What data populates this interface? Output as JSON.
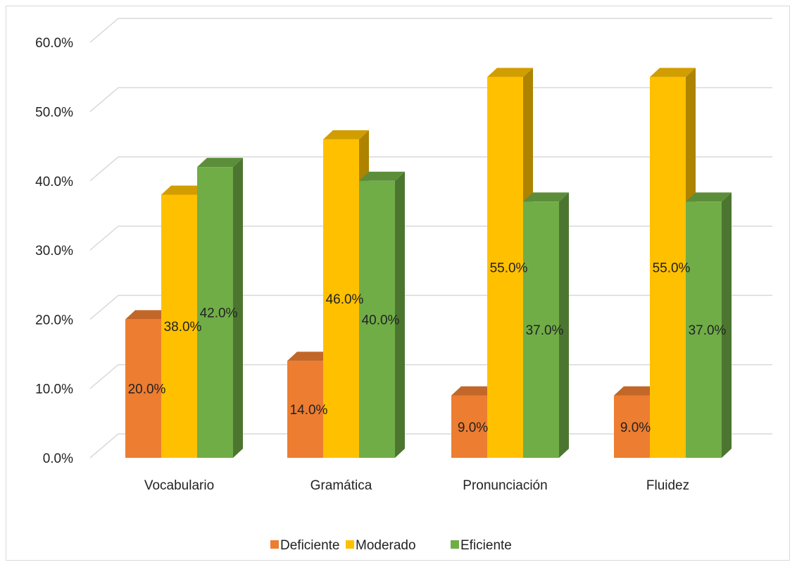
{
  "chart_data": {
    "type": "bar",
    "subtype": "3d-clustered-column",
    "categories": [
      "Vocabulario",
      "Gramática",
      "Pronunciación",
      "Fluidez"
    ],
    "series": [
      {
        "name": "Deficiente",
        "values": [
          20.0,
          14.0,
          9.0,
          9.0
        ],
        "color": "#ED7D31"
      },
      {
        "name": "Moderado",
        "values": [
          38.0,
          46.0,
          55.0,
          55.0
        ],
        "color": "#FFC000"
      },
      {
        "name": "Eficiente",
        "values": [
          42.0,
          40.0,
          37.0,
          37.0
        ],
        "color": "#70AD47"
      }
    ],
    "data_labels": [
      [
        "20.0%",
        "38.0%",
        "42.0%"
      ],
      [
        "14.0%",
        "46.0%",
        "40.0%"
      ],
      [
        "9.0%",
        "55.0%",
        "37.0%"
      ],
      [
        "9.0%",
        "55.0%",
        "37.0%"
      ]
    ],
    "yticks": [
      "0.0%",
      "10.0%",
      "20.0%",
      "30.0%",
      "40.0%",
      "50.0%",
      "60.0%"
    ],
    "ylim": [
      0,
      60
    ],
    "title": "",
    "xlabel": "",
    "ylabel": "",
    "grid": true,
    "legend_position": "bottom"
  }
}
